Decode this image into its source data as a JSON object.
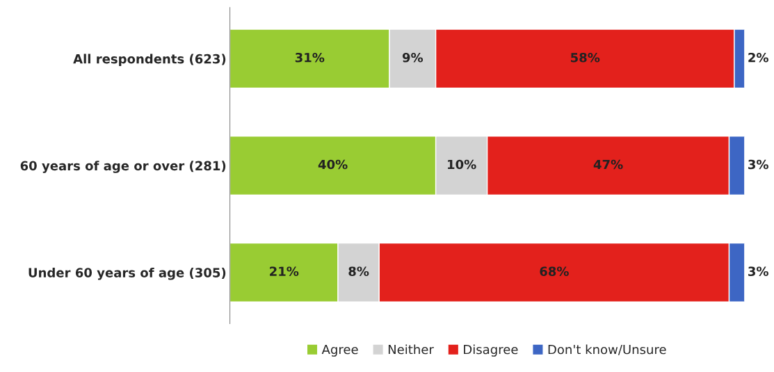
{
  "chart_data": {
    "type": "bar",
    "orientation": "horizontal",
    "stacked": true,
    "legend": "bottom",
    "categories": [
      "All respondents (623)",
      "60 years of age or over (281)",
      "Under 60 years of age (305)"
    ],
    "series": [
      {
        "name": "Agree",
        "color": "#99cc33",
        "values": [
          31,
          40,
          21
        ],
        "value_labels": [
          "31%",
          "40%",
          "21%"
        ]
      },
      {
        "name": "Neither",
        "color": "#d3d3d3",
        "values": [
          9,
          10,
          8
        ],
        "value_labels": [
          "9%",
          "10%",
          "8%"
        ]
      },
      {
        "name": "Disagree",
        "color": "#e3211c",
        "values": [
          58,
          47,
          68
        ],
        "value_labels": [
          "58%",
          "47%",
          "68%"
        ]
      },
      {
        "name": "Don't know/Unsure",
        "color": "#3d66c4",
        "values": [
          2,
          3,
          3
        ],
        "value_labels": [
          "2%",
          "3%",
          "3%"
        ]
      }
    ]
  }
}
